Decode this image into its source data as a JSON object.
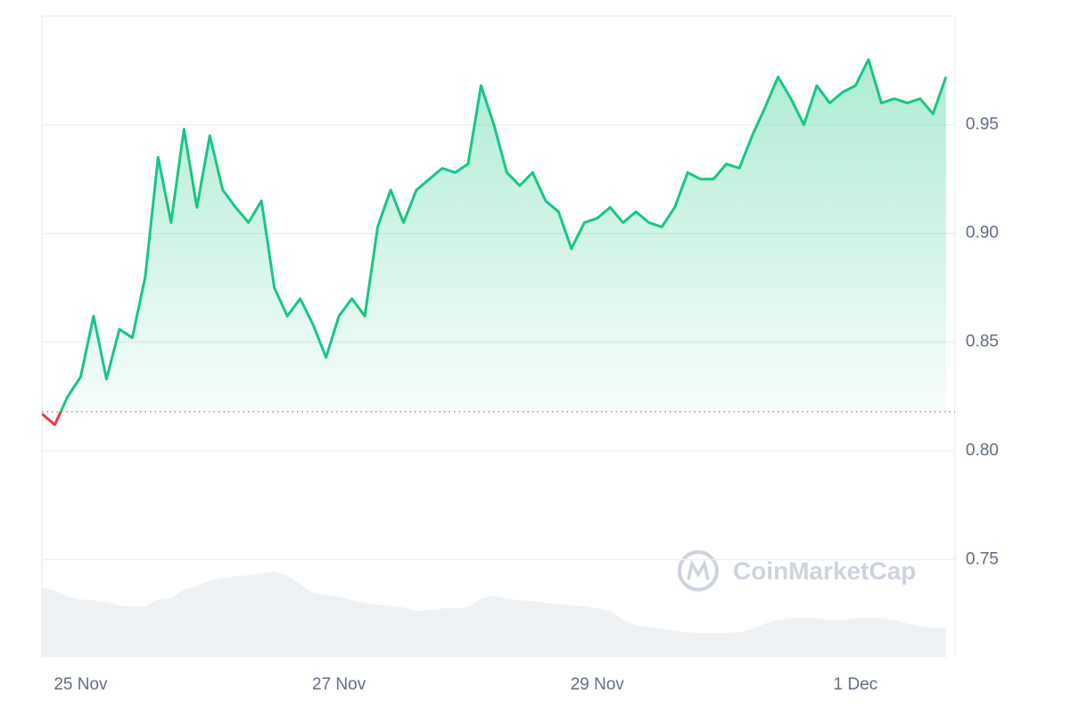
{
  "chart_data": {
    "type": "line",
    "watermark": "CoinMarketCap",
    "baseline": 0.818,
    "xlim": [
      -0.3,
      6.77
    ],
    "xticks": [
      {
        "value": 0,
        "label": "25 Nov"
      },
      {
        "value": 2,
        "label": "27 Nov"
      },
      {
        "value": 4,
        "label": "29 Nov"
      },
      {
        "value": 6,
        "label": "1 Dec"
      }
    ],
    "ylim": [
      0.705,
      1.0
    ],
    "yticks": [
      {
        "value": 0.8,
        "label": "0.80"
      },
      0.85,
      {
        "value": 0.9,
        "label": "0.90"
      },
      0.95,
      0.75
    ],
    "grid": true,
    "up_color": "#16c784",
    "down_color": "#ea3943",
    "x": [
      -0.3,
      -0.2,
      -0.1,
      0,
      0.1,
      0.2,
      0.3,
      0.4,
      0.5,
      0.6,
      0.7,
      0.8,
      0.9,
      1.0,
      1.1,
      1.2,
      1.3,
      1.4,
      1.5,
      1.6,
      1.7,
      1.8,
      1.9,
      2.0,
      2.1,
      2.2,
      2.3,
      2.4,
      2.5,
      2.6,
      2.7,
      2.8,
      2.9,
      3.0,
      3.1,
      3.2,
      3.3,
      3.4,
      3.5,
      3.6,
      3.7,
      3.8,
      3.9,
      4.0,
      4.1,
      4.2,
      4.3,
      4.4,
      4.5,
      4.6,
      4.7,
      4.8,
      4.9,
      5.0,
      5.1,
      5.2,
      5.3,
      5.4,
      5.5,
      5.6,
      5.7,
      5.8,
      5.9,
      6.0,
      6.1,
      6.2,
      6.3,
      6.4,
      6.5,
      6.6,
      6.7
    ],
    "values": [
      0.817,
      0.812,
      0.825,
      0.834,
      0.862,
      0.833,
      0.856,
      0.852,
      0.88,
      0.935,
      0.905,
      0.948,
      0.912,
      0.945,
      0.92,
      0.912,
      0.905,
      0.915,
      0.875,
      0.862,
      0.87,
      0.858,
      0.843,
      0.862,
      0.87,
      0.862,
      0.903,
      0.92,
      0.905,
      0.92,
      0.925,
      0.93,
      0.928,
      0.932,
      0.968,
      0.95,
      0.928,
      0.922,
      0.928,
      0.915,
      0.91,
      0.893,
      0.905,
      0.907,
      0.912,
      0.905,
      0.91,
      0.905,
      0.903,
      0.912,
      0.928,
      0.925,
      0.925,
      0.932,
      0.93,
      0.945,
      0.958,
      0.972,
      0.962,
      0.95,
      0.968,
      0.96,
      0.965,
      0.968,
      0.98,
      0.96,
      0.962,
      0.96,
      0.962,
      0.955,
      0.972
    ],
    "volume": {
      "color": "#eff2f5",
      "ylim": [
        0,
        100
      ],
      "values": [
        78,
        75,
        68,
        65,
        64,
        62,
        58,
        57,
        57,
        65,
        66,
        76,
        80,
        86,
        89,
        91,
        92,
        94,
        96,
        92,
        82,
        72,
        70,
        68,
        64,
        61,
        59,
        58,
        56,
        52,
        53,
        55,
        55,
        56,
        66,
        69,
        66,
        64,
        63,
        61,
        60,
        58,
        57,
        55,
        52,
        42,
        36,
        34,
        32,
        30,
        28,
        27,
        27,
        27,
        28,
        32,
        38,
        42,
        44,
        44,
        44,
        42,
        42,
        44,
        44,
        44,
        42,
        38,
        35,
        33,
        33
      ]
    }
  }
}
